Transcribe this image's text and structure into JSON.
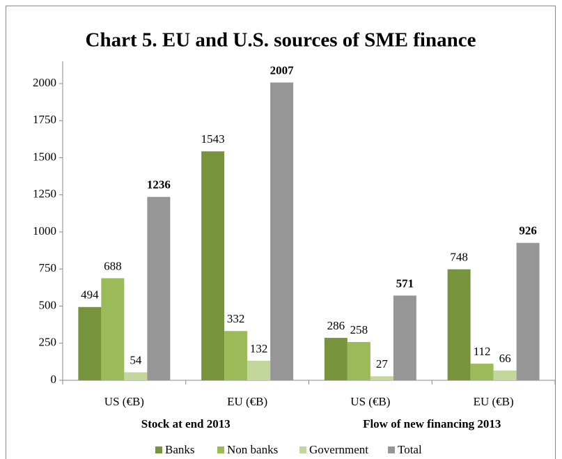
{
  "chart_data": {
    "type": "bar",
    "title": "Chart 5. EU and U.S. sources of SME finance",
    "categories": [
      "US (€B)",
      "EU (€B)",
      "US (€B)",
      "EU (€B)"
    ],
    "group_labels": [
      "Stock at end 2013",
      "Flow of new financing 2013"
    ],
    "series": [
      {
        "name": "Banks",
        "color": "#77933c",
        "values": [
          494,
          1543,
          286,
          748
        ]
      },
      {
        "name": "Non banks",
        "color": "#9bbb59",
        "values": [
          688,
          332,
          258,
          112
        ]
      },
      {
        "name": "Government",
        "color": "#c3d69b",
        "values": [
          54,
          132,
          27,
          66
        ]
      },
      {
        "name": "Total",
        "color": "#969696",
        "values": [
          1236,
          2007,
          571,
          926
        ]
      }
    ],
    "ylim": [
      0,
      2150
    ],
    "yticks": [
      0,
      250,
      500,
      750,
      1000,
      1250,
      1500,
      1750,
      2000
    ],
    "legend": "bottom"
  }
}
